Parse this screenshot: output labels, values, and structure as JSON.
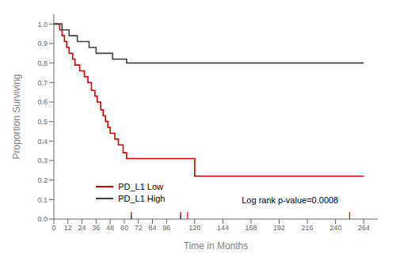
{
  "chart_data": {
    "type": "line",
    "x_label": "Time in Months",
    "y_label": "Proportion Surviving",
    "annotation": "Log rank p-value=0.0008",
    "legend": "lower left",
    "xlim": [
      0,
      276
    ],
    "ylim": [
      0.0,
      1.05
    ],
    "xticks": [
      0,
      12,
      24,
      36,
      48,
      60,
      72,
      84,
      96,
      120,
      144,
      168,
      192,
      216,
      240,
      264
    ],
    "yticks": [
      {
        "value": 0.0,
        "label": "0.0"
      },
      0.1,
      0.2,
      0.3,
      0.4,
      0.5,
      0.6,
      0.7,
      0.8,
      0.9,
      {
        "value": 1.0,
        "label": "1.0"
      }
    ],
    "series": [
      {
        "name": "PD_L1 Low",
        "color": "#cc0000",
        "line_style": "step",
        "x": [
          0,
          5,
          7,
          9,
          11,
          13,
          16,
          18,
          22,
          26,
          29,
          32,
          35,
          37,
          40,
          42,
          44,
          46,
          48,
          52,
          55,
          59,
          62,
          66,
          110,
          118,
          120,
          252,
          264
        ],
        "values": [
          1.0,
          0.97,
          0.94,
          0.91,
          0.88,
          0.85,
          0.82,
          0.79,
          0.76,
          0.73,
          0.7,
          0.66,
          0.63,
          0.6,
          0.56,
          0.53,
          0.5,
          0.47,
          0.44,
          0.41,
          0.38,
          0.34,
          0.31,
          0.31,
          0.31,
          0.31,
          0.22,
          0.22,
          0.22
        ],
        "censor_times": [
          66,
          108,
          114,
          252
        ]
      },
      {
        "name": "PD_L1 High",
        "color": "#404040",
        "line_style": "step",
        "x": [
          0,
          7,
          13,
          20,
          30,
          36,
          50,
          62,
          264
        ],
        "values": [
          1.0,
          0.97,
          0.94,
          0.91,
          0.88,
          0.85,
          0.82,
          0.8,
          0.8
        ],
        "censor_times": [
          66,
          108
        ]
      }
    ]
  }
}
